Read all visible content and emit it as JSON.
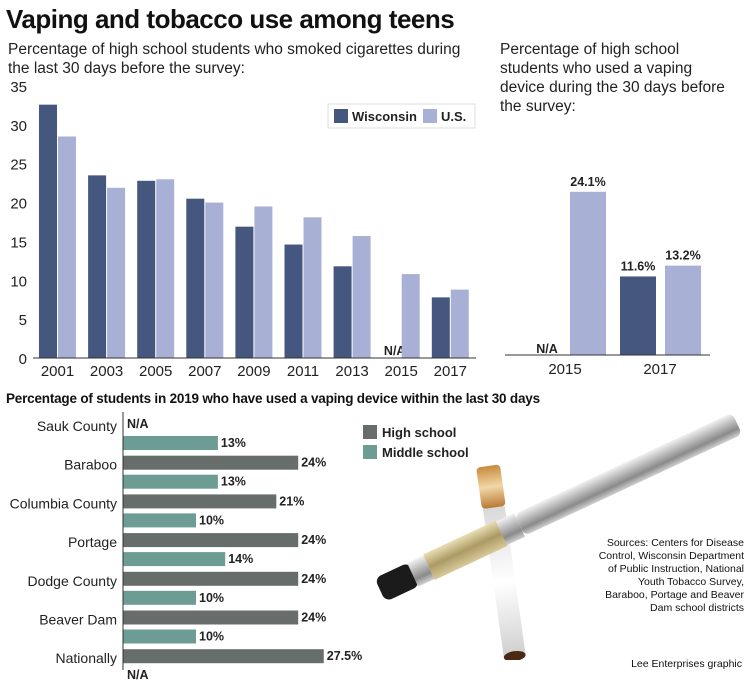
{
  "title": "Vaping and tobacco use among teens",
  "colors": {
    "wisconsin": "#45567f",
    "us": "#a9b0d6",
    "high_school": "#666d6b",
    "middle_school": "#6c9c94"
  },
  "chart_data": [
    {
      "type": "bar",
      "title": "Percentage of high school students who smoked cigarettes during the last 30 days before the survey:",
      "categories": [
        "2001",
        "2003",
        "2005",
        "2007",
        "2009",
        "2011",
        "2013",
        "2015",
        "2017"
      ],
      "series": [
        {
          "name": "Wisconsin",
          "values": [
            32.6,
            23.5,
            22.8,
            20.5,
            16.9,
            14.6,
            11.8,
            null,
            7.8
          ]
        },
        {
          "name": "U.S.",
          "values": [
            28.5,
            21.9,
            23.0,
            20.0,
            19.5,
            18.1,
            15.7,
            10.8,
            8.8
          ]
        }
      ],
      "missing_label": "N/A",
      "yticks": [
        0,
        5,
        10,
        15,
        20,
        25,
        30,
        35
      ],
      "ylim": [
        0,
        35
      ],
      "legend": "top-right",
      "grid": false
    },
    {
      "type": "bar",
      "title": "Percentage of high school students who used a vaping device during the 30 days before the survey:",
      "categories": [
        "2015",
        "2017"
      ],
      "series": [
        {
          "name": "Wisconsin",
          "values": [
            null,
            11.6
          ],
          "labels": [
            "N/A",
            "11.6%"
          ]
        },
        {
          "name": "U.S.",
          "values": [
            24.1,
            13.2
          ],
          "labels": [
            "24.1%",
            "13.2%"
          ]
        }
      ],
      "ylim": [
        0,
        35
      ],
      "grid": false
    },
    {
      "type": "bar",
      "orientation": "horizontal",
      "title": "Percentage of students in 2019 who have used a vaping device within the last 30 days",
      "categories": [
        "Sauk County",
        "Baraboo",
        "Columbia County",
        "Portage",
        "Dodge County",
        "Beaver Dam",
        "Nationally"
      ],
      "series": [
        {
          "name": "High school",
          "values": [
            null,
            24,
            21,
            24,
            24,
            24,
            27.5
          ],
          "labels": [
            "N/A",
            "24%",
            "21%",
            "24%",
            "24%",
            "24%",
            "27.5%"
          ]
        },
        {
          "name": "Middle school",
          "values": [
            13,
            13,
            10,
            14,
            10,
            10,
            null
          ],
          "labels": [
            "13%",
            "13%",
            "10%",
            "14%",
            "10%",
            "10%",
            "N/A"
          ]
        }
      ],
      "legend": "top-right",
      "grid": false
    }
  ],
  "sources": "Sources: Centers for Disease Control, Wisconsin Department of Public Instruction, National Youth Tobacco Survey, Baraboo, Portage and Beaver Dam school districts",
  "credit": "Lee Enterprises graphic"
}
